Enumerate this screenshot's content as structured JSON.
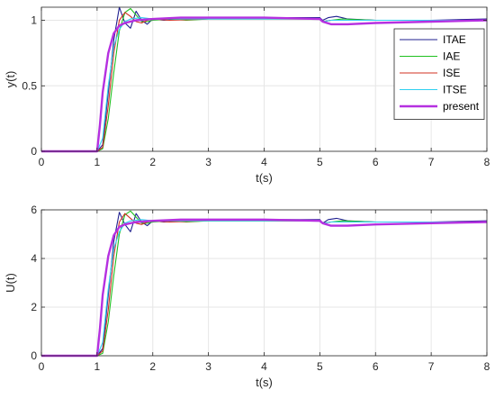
{
  "chart_data": [
    {
      "type": "line",
      "xlabel": "t(s)",
      "ylabel": "y(t)",
      "xlim": [
        0,
        8
      ],
      "ylim": [
        0,
        1.1
      ],
      "xticks": [
        "0",
        "1",
        "2",
        "3",
        "4",
        "5",
        "6",
        "7",
        "8"
      ],
      "yticks": [
        "0",
        "0.5",
        "1"
      ],
      "ytick_values": [
        0,
        0.5,
        1
      ],
      "grid": true,
      "legend_position": "top-right",
      "series": [
        {
          "name": "ITAE",
          "color": "#1f1f8f",
          "x": [
            0,
            1.0,
            1.1,
            1.2,
            1.3,
            1.4,
            1.5,
            1.6,
            1.7,
            1.8,
            1.9,
            2.0,
            2.2,
            2.5,
            3.0,
            4.0,
            5.0,
            5.05,
            5.15,
            5.3,
            5.5,
            6.0,
            7.0,
            8.0
          ],
          "y": [
            0,
            0,
            0.05,
            0.45,
            0.85,
            1.1,
            0.98,
            0.94,
            1.07,
            1.0,
            0.97,
            1.01,
            1.0,
            1.01,
            1.02,
            1.02,
            1.02,
            1.0,
            1.02,
            1.03,
            1.01,
            1.0,
            1.0,
            1.01
          ]
        },
        {
          "name": "IAE",
          "color": "#20c020",
          "x": [
            0,
            1.0,
            1.1,
            1.2,
            1.3,
            1.4,
            1.5,
            1.6,
            1.7,
            1.8,
            1.9,
            2.0,
            2.3,
            2.6,
            3.0,
            4.0,
            5.0,
            5.05,
            5.2,
            5.4,
            6.0,
            7.0,
            8.0
          ],
          "y": [
            0,
            0,
            0.02,
            0.25,
            0.6,
            0.92,
            1.06,
            1.09,
            1.04,
            0.99,
            0.99,
            1.0,
            1.01,
            1.0,
            1.01,
            1.01,
            1.01,
            0.99,
            1.0,
            1.01,
            1.0,
            1.0,
            1.0
          ]
        },
        {
          "name": "ISE",
          "color": "#d03020",
          "x": [
            0,
            1.0,
            1.1,
            1.2,
            1.3,
            1.4,
            1.5,
            1.6,
            1.7,
            1.8,
            1.9,
            2.0,
            2.3,
            3.0,
            4.0,
            5.0,
            5.05,
            5.2,
            5.5,
            6.0,
            7.0,
            8.0
          ],
          "y": [
            0,
            0,
            0.03,
            0.35,
            0.75,
            1.0,
            1.06,
            1.03,
            0.99,
            0.98,
            1.0,
            1.01,
            1.0,
            1.01,
            1.01,
            1.01,
            0.99,
            1.0,
            1.0,
            1.0,
            1.0,
            1.0
          ]
        },
        {
          "name": "ITSE",
          "color": "#30d0f0",
          "x": [
            0,
            1.0,
            1.1,
            1.2,
            1.3,
            1.4,
            1.5,
            1.6,
            1.8,
            2.0,
            2.5,
            3.0,
            4.0,
            5.0,
            5.05,
            5.2,
            5.5,
            6.0,
            7.0,
            8.0
          ],
          "y": [
            0,
            0,
            0.1,
            0.5,
            0.8,
            0.93,
            0.99,
            1.01,
            1.02,
            1.01,
            1.01,
            1.01,
            1.01,
            1.01,
            0.99,
            1.0,
            1.0,
            1.0,
            1.0,
            1.0
          ]
        },
        {
          "name": "present",
          "color": "#b530e0",
          "width": 2.4,
          "x": [
            0,
            1.0,
            1.05,
            1.1,
            1.2,
            1.3,
            1.4,
            1.5,
            1.7,
            2.0,
            2.5,
            3.0,
            4.0,
            5.0,
            5.05,
            5.2,
            5.5,
            6.0,
            7.0,
            8.0
          ],
          "y": [
            0,
            0,
            0.2,
            0.45,
            0.75,
            0.9,
            0.96,
            0.98,
            1.0,
            1.01,
            1.02,
            1.02,
            1.02,
            1.01,
            0.99,
            0.97,
            0.97,
            0.98,
            0.99,
            1.0
          ]
        }
      ]
    },
    {
      "type": "line",
      "xlabel": "t(s)",
      "ylabel": "U(t)",
      "xlim": [
        0,
        8
      ],
      "ylim": [
        0,
        6
      ],
      "xticks": [
        "0",
        "1",
        "2",
        "3",
        "4",
        "5",
        "6",
        "7",
        "8"
      ],
      "yticks": [
        "0",
        "2",
        "4",
        "6"
      ],
      "ytick_values": [
        0,
        2,
        4,
        6
      ],
      "grid": true,
      "series": [
        {
          "name": "ITAE",
          "color": "#1f1f8f",
          "x": [
            0,
            1.0,
            1.1,
            1.2,
            1.3,
            1.4,
            1.5,
            1.6,
            1.7,
            1.8,
            1.9,
            2.0,
            2.2,
            2.5,
            3.0,
            4.0,
            5.0,
            5.05,
            5.15,
            5.3,
            5.5,
            6.0,
            7.0,
            8.0
          ],
          "y": [
            0,
            0,
            0.3,
            2.5,
            4.7,
            5.9,
            5.4,
            5.1,
            5.85,
            5.5,
            5.35,
            5.55,
            5.5,
            5.55,
            5.6,
            5.6,
            5.6,
            5.45,
            5.6,
            5.65,
            5.55,
            5.5,
            5.5,
            5.55
          ]
        },
        {
          "name": "IAE",
          "color": "#20c020",
          "x": [
            0,
            1.0,
            1.1,
            1.2,
            1.3,
            1.4,
            1.5,
            1.6,
            1.7,
            1.8,
            1.9,
            2.0,
            2.3,
            2.6,
            3.0,
            4.0,
            5.0,
            5.05,
            5.2,
            5.4,
            6.0,
            7.0,
            8.0
          ],
          "y": [
            0,
            0,
            0.1,
            1.4,
            3.3,
            5.0,
            5.8,
            5.95,
            5.7,
            5.45,
            5.45,
            5.5,
            5.55,
            5.5,
            5.55,
            5.55,
            5.55,
            5.45,
            5.5,
            5.55,
            5.5,
            5.5,
            5.5
          ]
        },
        {
          "name": "ISE",
          "color": "#d03020",
          "x": [
            0,
            1.0,
            1.1,
            1.2,
            1.3,
            1.4,
            1.5,
            1.6,
            1.7,
            1.8,
            1.9,
            2.0,
            2.3,
            3.0,
            4.0,
            5.0,
            5.05,
            5.2,
            5.5,
            6.0,
            7.0,
            8.0
          ],
          "y": [
            0,
            0,
            0.2,
            1.9,
            4.1,
            5.5,
            5.85,
            5.65,
            5.45,
            5.4,
            5.5,
            5.55,
            5.5,
            5.55,
            5.55,
            5.55,
            5.45,
            5.5,
            5.5,
            5.5,
            5.5,
            5.5
          ]
        },
        {
          "name": "ITSE",
          "color": "#30d0f0",
          "x": [
            0,
            1.0,
            1.1,
            1.2,
            1.3,
            1.4,
            1.5,
            1.6,
            1.8,
            2.0,
            2.5,
            3.0,
            4.0,
            5.0,
            5.05,
            5.2,
            5.5,
            6.0,
            7.0,
            8.0
          ],
          "y": [
            0,
            0,
            0.55,
            2.75,
            4.4,
            5.1,
            5.45,
            5.55,
            5.6,
            5.55,
            5.55,
            5.55,
            5.55,
            5.55,
            5.45,
            5.5,
            5.5,
            5.5,
            5.5,
            5.5
          ]
        },
        {
          "name": "present",
          "color": "#b530e0",
          "width": 2.4,
          "x": [
            0,
            1.0,
            1.05,
            1.1,
            1.2,
            1.3,
            1.4,
            1.5,
            1.7,
            2.0,
            2.5,
            3.0,
            4.0,
            5.0,
            5.05,
            5.2,
            5.5,
            6.0,
            7.0,
            8.0
          ],
          "y": [
            0,
            0,
            1.1,
            2.5,
            4.1,
            4.95,
            5.3,
            5.4,
            5.5,
            5.55,
            5.6,
            5.6,
            5.6,
            5.55,
            5.45,
            5.35,
            5.35,
            5.4,
            5.45,
            5.5
          ]
        }
      ]
    }
  ]
}
